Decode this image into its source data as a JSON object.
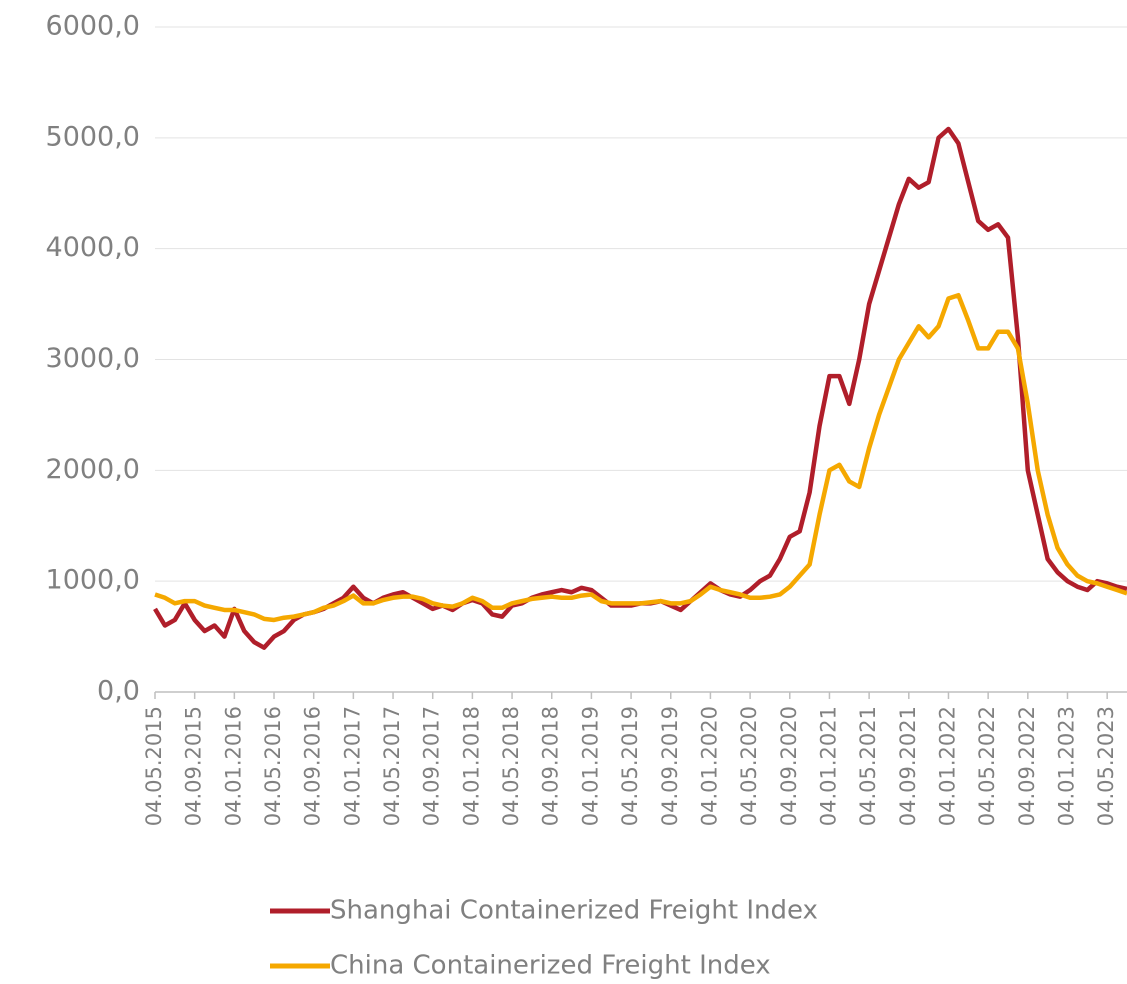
{
  "chart_data": {
    "type": "line",
    "categories": [
      "04.05.2015",
      null,
      null,
      null,
      "04.09.2015",
      null,
      null,
      null,
      "04.01.2016",
      null,
      null,
      null,
      "04.05.2016",
      null,
      null,
      null,
      "04.09.2016",
      null,
      null,
      null,
      "04.01.2017",
      null,
      null,
      null,
      "04.05.2017",
      null,
      null,
      null,
      "04.09.2017",
      null,
      null,
      null,
      "04.01.2018",
      null,
      null,
      null,
      "04.05.2018",
      null,
      null,
      null,
      "04.09.2018",
      null,
      null,
      null,
      "04.01.2019",
      null,
      null,
      null,
      "04.05.2019",
      null,
      null,
      null,
      "04.09.2019",
      null,
      null,
      null,
      "04.01.2020",
      null,
      null,
      null,
      "04.05.2020",
      null,
      null,
      null,
      "04.09.2020",
      null,
      null,
      null,
      "04.01.2021",
      null,
      null,
      null,
      "04.05.2021",
      null,
      null,
      null,
      "04.09.2021",
      null,
      null,
      null,
      "04.01.2022",
      null,
      null,
      null,
      "04.05.2022",
      null,
      null,
      null,
      "04.09.2022",
      null,
      null,
      null,
      "04.01.2023",
      null,
      null,
      null,
      "04.05.2023",
      null,
      null
    ],
    "series": [
      {
        "name": "Shanghai Containerized Freight Index",
        "color": "#b01e2a",
        "values": [
          750,
          600,
          650,
          800,
          650,
          550,
          600,
          500,
          750,
          550,
          450,
          400,
          500,
          550,
          650,
          700,
          720,
          750,
          800,
          850,
          950,
          850,
          800,
          850,
          880,
          900,
          850,
          800,
          750,
          780,
          740,
          800,
          830,
          800,
          700,
          680,
          780,
          800,
          850,
          880,
          900,
          920,
          900,
          940,
          920,
          850,
          780,
          780,
          780,
          800,
          800,
          820,
          780,
          740,
          820,
          900,
          980,
          920,
          880,
          860,
          920,
          1000,
          1050,
          1200,
          1400,
          1450,
          1800,
          2400,
          2850,
          2850,
          2600,
          3000,
          3500,
          3800,
          4100,
          4400,
          4630,
          4550,
          4600,
          5000,
          5080,
          4950,
          4600,
          4250,
          4170,
          4220,
          4100,
          3200,
          2000,
          1600,
          1200,
          1080,
          1000,
          950,
          920,
          1000,
          980,
          950,
          930
        ]
      },
      {
        "name": "China Containerized Freight Index",
        "color": "#f5a800",
        "values": [
          880,
          850,
          800,
          820,
          820,
          780,
          760,
          740,
          740,
          720,
          700,
          660,
          650,
          670,
          680,
          700,
          720,
          760,
          780,
          820,
          870,
          800,
          800,
          830,
          850,
          860,
          860,
          840,
          800,
          780,
          770,
          800,
          850,
          820,
          760,
          760,
          800,
          820,
          840,
          850,
          860,
          850,
          850,
          870,
          880,
          820,
          800,
          800,
          800,
          800,
          810,
          820,
          800,
          800,
          820,
          880,
          950,
          920,
          900,
          880,
          850,
          850,
          860,
          880,
          950,
          1050,
          1150,
          1600,
          2000,
          2050,
          1900,
          1850,
          2200,
          2500,
          2750,
          3000,
          3150,
          3300,
          3200,
          3300,
          3550,
          3580,
          3350,
          3100,
          3100,
          3250,
          3250,
          3100,
          2600,
          2000,
          1600,
          1300,
          1150,
          1050,
          1000,
          980,
          950,
          920,
          890
        ]
      }
    ],
    "ylim": [
      0,
      6000
    ],
    "yticks": [
      {
        "value": 0,
        "label": "0,0"
      },
      {
        "value": 1000,
        "label": "1000,0"
      },
      {
        "value": 2000,
        "label": "2000,0"
      },
      {
        "value": 3000,
        "label": "3000,0"
      },
      {
        "value": 4000,
        "label": "4000,0"
      },
      {
        "value": 5000,
        "label": "5000,0"
      },
      {
        "value": 6000,
        "label": "6000,0"
      }
    ],
    "grid": true,
    "legend": "bottom"
  }
}
